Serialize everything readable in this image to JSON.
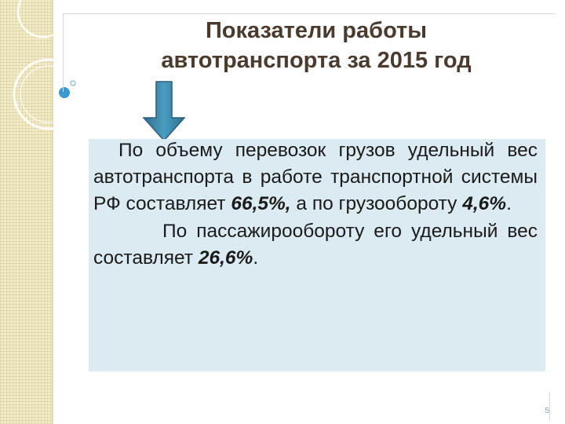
{
  "slide": {
    "title_line1": "Показатели работы",
    "title_line2": "автотранспорта за 2015 год",
    "paragraph1": {
      "text_a": "По объему перевозок грузов удельный вес автотранспорта в работе транспортной системы РФ составляет ",
      "value_a": "66,5%,",
      "text_b": " а по грузообороту ",
      "value_b": "4,6%",
      "text_c": "."
    },
    "paragraph2": {
      "text_a": "По пассажирообороту его удельный вес составляет ",
      "value_a": "26,6%",
      "text_b": "."
    },
    "page_number": "5"
  },
  "colors": {
    "title": "#4a3b2e",
    "arrow": "#3f8cae",
    "content_background": "#dcebf2",
    "side_strip": "#f3ecc9"
  },
  "icons": {
    "arrow": "arrow-down-icon"
  }
}
